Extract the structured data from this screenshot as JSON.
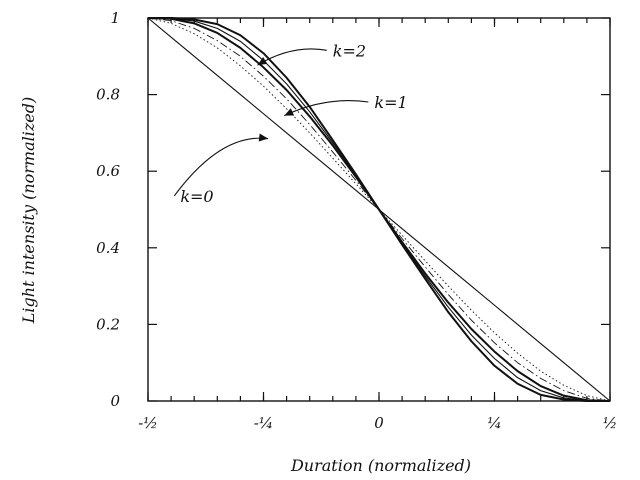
{
  "chart_data": {
    "type": "line",
    "title": "",
    "xlabel": "Duration (normalized)",
    "ylabel": "Light intensity (normalized)",
    "xlim": [
      -0.5,
      0.5
    ],
    "ylim": [
      0,
      1
    ],
    "xticks": [
      {
        "value": -0.5,
        "label": "-½"
      },
      {
        "value": -0.25,
        "label": "-¼"
      },
      {
        "value": 0,
        "label": "0"
      },
      {
        "value": 0.25,
        "label": "¼"
      },
      {
        "value": 0.5,
        "label": "½"
      }
    ],
    "yticks": [
      {
        "value": 0,
        "label": "0"
      },
      {
        "value": 0.2,
        "label": "0.2"
      },
      {
        "value": 0.4,
        "label": "0.4"
      },
      {
        "value": 0.6,
        "label": "0.6"
      },
      {
        "value": 0.8,
        "label": "0.8"
      },
      {
        "value": 1,
        "label": "1"
      }
    ],
    "grid": false,
    "x": [
      -0.5,
      -0.45,
      -0.4,
      -0.35,
      -0.3,
      -0.25,
      -0.2,
      -0.15,
      -0.1,
      -0.05,
      0,
      0.05,
      0.1,
      0.15,
      0.2,
      0.25,
      0.3,
      0.35,
      0.4,
      0.45,
      0.5
    ],
    "series": [
      {
        "name": "k=0",
        "style": "solid-thin",
        "values": [
          1.0,
          0.95,
          0.9,
          0.85,
          0.8,
          0.75,
          0.7,
          0.65,
          0.6,
          0.55,
          0.5,
          0.45,
          0.4,
          0.35,
          0.3,
          0.25,
          0.2,
          0.15,
          0.1,
          0.05,
          0.0
        ]
      },
      {
        "name": "",
        "style": "dotted",
        "values": [
          1.0,
          0.986,
          0.959,
          0.922,
          0.875,
          0.822,
          0.763,
          0.7,
          0.634,
          0.567,
          0.5,
          0.433,
          0.366,
          0.3,
          0.237,
          0.178,
          0.125,
          0.078,
          0.041,
          0.014,
          0.0
        ]
      },
      {
        "name": "",
        "style": "dash-dot",
        "values": [
          1.0,
          0.993,
          0.973,
          0.941,
          0.9,
          0.848,
          0.789,
          0.722,
          0.65,
          0.576,
          0.5,
          0.424,
          0.35,
          0.278,
          0.211,
          0.152,
          0.1,
          0.059,
          0.027,
          0.007,
          0.0
        ]
      },
      {
        "name": "k=1",
        "style": "solid-thick",
        "values": [
          1.0,
          0.998,
          0.986,
          0.961,
          0.922,
          0.871,
          0.812,
          0.743,
          0.667,
          0.585,
          0.5,
          0.415,
          0.333,
          0.257,
          0.188,
          0.129,
          0.078,
          0.039,
          0.014,
          0.002,
          0.0
        ]
      },
      {
        "name": "",
        "style": "solid-medium",
        "values": [
          1.0,
          0.999,
          0.992,
          0.973,
          0.939,
          0.889,
          0.828,
          0.755,
          0.674,
          0.589,
          0.5,
          0.411,
          0.326,
          0.245,
          0.172,
          0.111,
          0.061,
          0.027,
          0.008,
          0.001,
          0.0
        ]
      },
      {
        "name": "k=2",
        "style": "solid-thick",
        "values": [
          1.0,
          1.0,
          0.996,
          0.984,
          0.955,
          0.908,
          0.844,
          0.768,
          0.681,
          0.592,
          0.5,
          0.408,
          0.319,
          0.232,
          0.156,
          0.092,
          0.045,
          0.016,
          0.004,
          0.0,
          0.0
        ]
      }
    ],
    "annotations": [
      {
        "text": "k=2",
        "x": -0.1,
        "y": 0.9,
        "target_x": -0.263,
        "target_y": 0.877
      },
      {
        "text": "k=1",
        "x": -0.01,
        "y": 0.765,
        "target_x": -0.205,
        "target_y": 0.745
      },
      {
        "text": "k=0",
        "x": -0.43,
        "y": 0.52,
        "target_x": -0.24,
        "target_y": 0.685
      }
    ]
  }
}
